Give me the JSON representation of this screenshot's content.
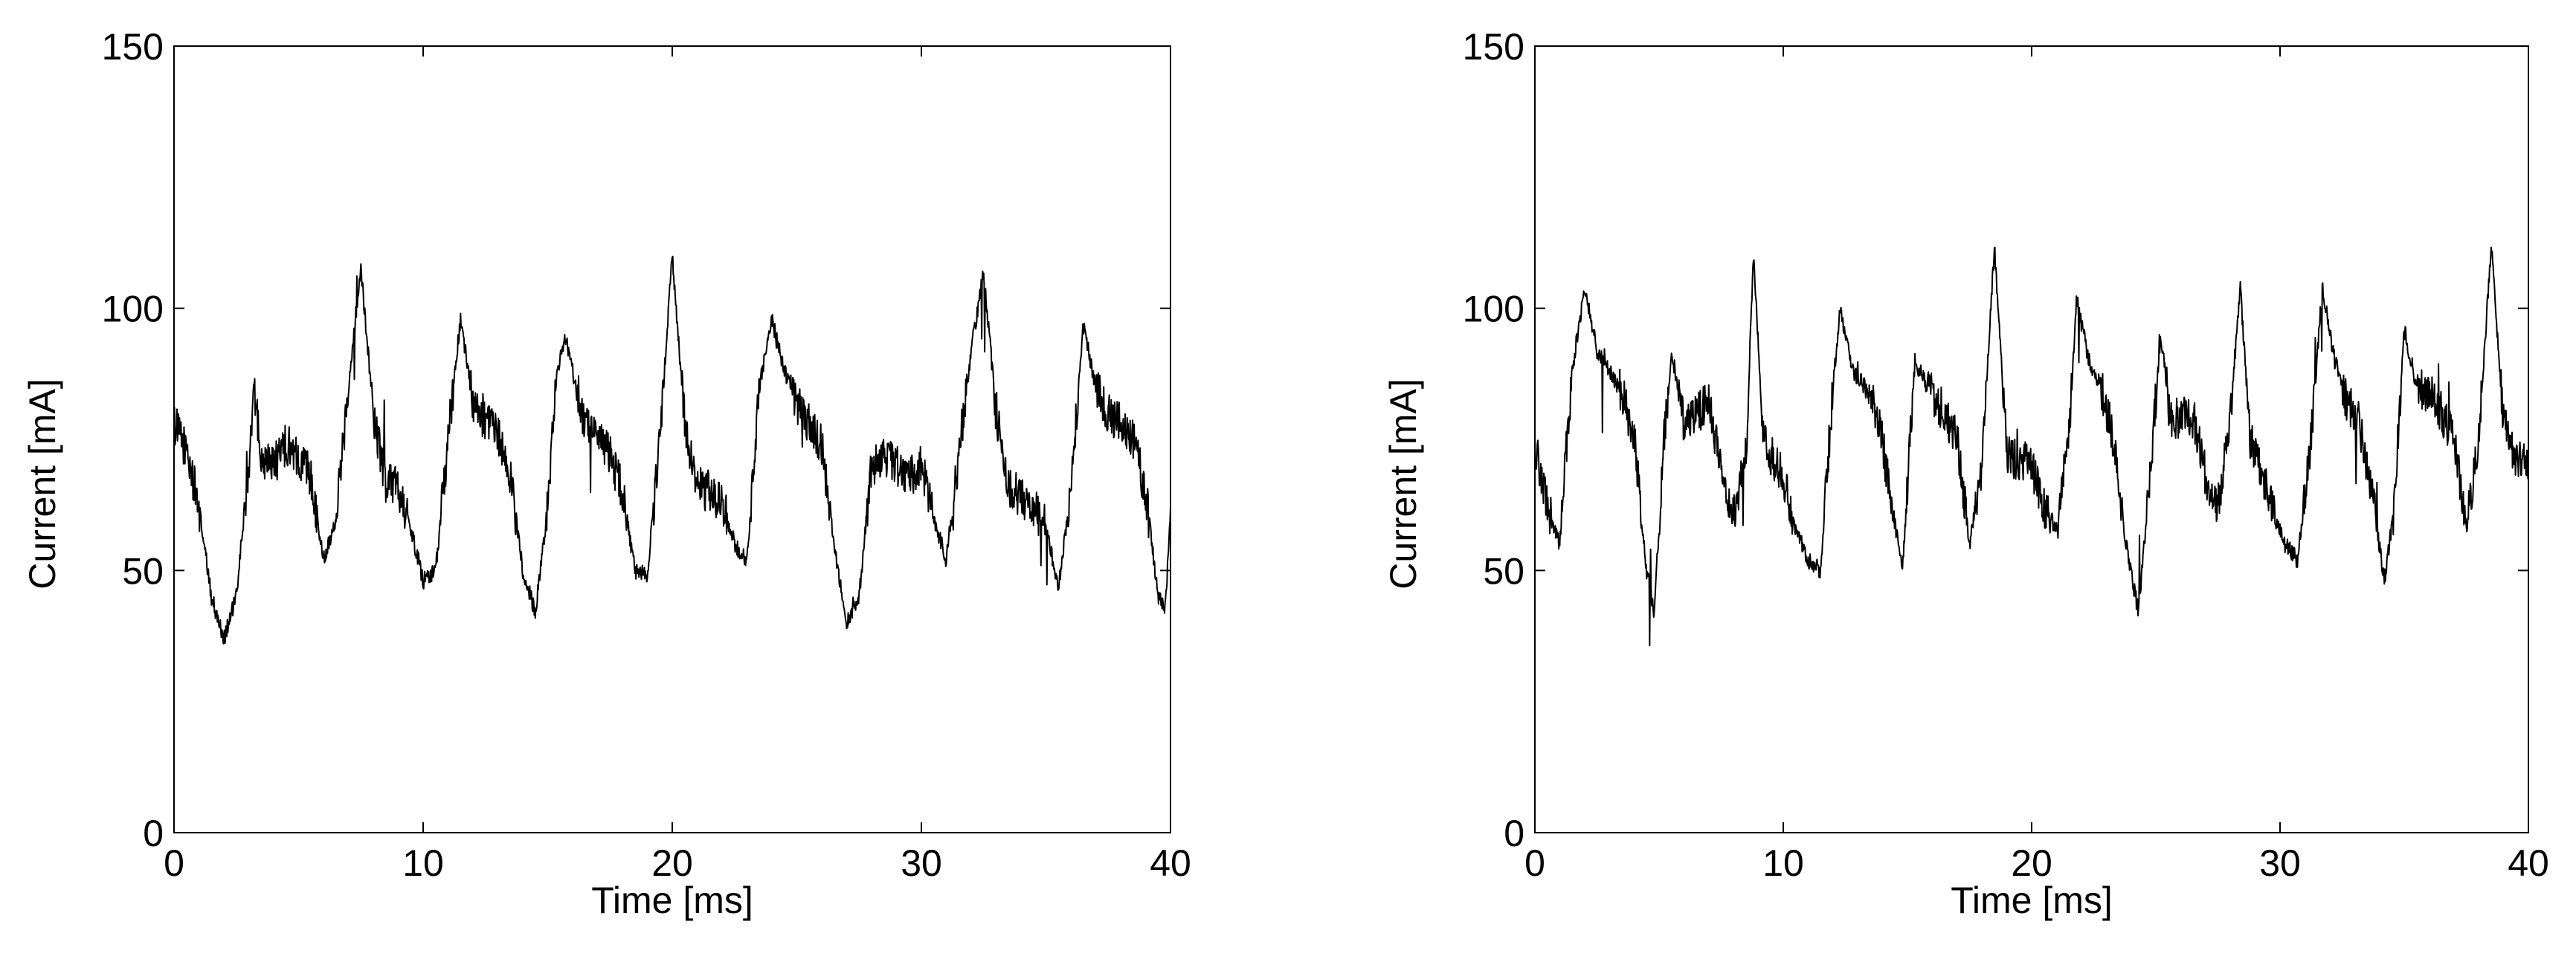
{
  "chart_data": [
    {
      "type": "line",
      "xlabel": "Time [ms]",
      "ylabel": "Current [mA]",
      "xlim": [
        0,
        40
      ],
      "ylim": [
        0,
        150
      ],
      "xticks": [
        0,
        10,
        20,
        30,
        40
      ],
      "yticks": [
        0,
        50,
        100,
        150
      ],
      "grid": false,
      "color": "#000000",
      "series": [
        {
          "keypoints": [
            [
              0.0,
              78
            ],
            [
              0.5,
              73
            ],
            [
              1.0,
              62
            ],
            [
              1.5,
              45
            ],
            [
              2.0,
              37
            ],
            [
              2.5,
              45
            ],
            [
              3.0,
              70
            ],
            [
              3.2,
              85
            ],
            [
              3.5,
              72
            ],
            [
              4.0,
              70
            ],
            [
              4.5,
              74
            ],
            [
              5.0,
              72
            ],
            [
              5.5,
              68
            ],
            [
              6.0,
              52
            ],
            [
              6.5,
              60
            ],
            [
              7.0,
              85
            ],
            [
              7.5,
              108
            ],
            [
              8.0,
              80
            ],
            [
              8.5,
              67
            ],
            [
              9.0,
              66
            ],
            [
              9.5,
              58
            ],
            [
              10.0,
              48
            ],
            [
              10.5,
              50
            ],
            [
              11.0,
              75
            ],
            [
              11.5,
              98
            ],
            [
              12.0,
              82
            ],
            [
              12.5,
              78
            ],
            [
              13.0,
              76
            ],
            [
              13.5,
              68
            ],
            [
              14.0,
              50
            ],
            [
              14.5,
              42
            ],
            [
              15.0,
              62
            ],
            [
              15.3,
              85
            ],
            [
              15.7,
              95
            ],
            [
              16.0,
              88
            ],
            [
              16.5,
              78
            ],
            [
              17.0,
              76
            ],
            [
              17.5,
              72
            ],
            [
              18.0,
              65
            ],
            [
              18.5,
              50
            ],
            [
              19.0,
              49
            ],
            [
              19.5,
              75
            ],
            [
              20.0,
              110
            ],
            [
              20.5,
              78
            ],
            [
              21.0,
              66
            ],
            [
              21.5,
              65
            ],
            [
              22.0,
              63
            ],
            [
              22.5,
              55
            ],
            [
              23.0,
              52
            ],
            [
              23.5,
              85
            ],
            [
              24.0,
              98
            ],
            [
              24.5,
              88
            ],
            [
              25.0,
              82
            ],
            [
              25.5,
              78
            ],
            [
              26.0,
              74
            ],
            [
              26.5,
              55
            ],
            [
              27.0,
              40
            ],
            [
              27.5,
              45
            ],
            [
              28.0,
              70
            ],
            [
              28.5,
              72
            ],
            [
              29.0,
              70
            ],
            [
              29.5,
              68
            ],
            [
              30.0,
              70
            ],
            [
              30.5,
              60
            ],
            [
              31.0,
              52
            ],
            [
              31.5,
              72
            ],
            [
              32.0,
              92
            ],
            [
              32.5,
              107
            ],
            [
              33.0,
              80
            ],
            [
              33.5,
              66
            ],
            [
              34.0,
              64
            ],
            [
              34.5,
              62
            ],
            [
              35.0,
              58
            ],
            [
              35.5,
              47
            ],
            [
              36.0,
              65
            ],
            [
              36.5,
              97
            ],
            [
              37.0,
              85
            ],
            [
              37.5,
              80
            ],
            [
              38.0,
              78
            ],
            [
              38.5,
              75
            ],
            [
              39.0,
              65
            ],
            [
              39.5,
              45
            ],
            [
              39.8,
              43
            ],
            [
              40.0,
              62
            ]
          ]
        }
      ]
    },
    {
      "type": "line",
      "xlabel": "Time [ms]",
      "ylabel": "Current [mA]",
      "xlim": [
        0,
        40
      ],
      "ylim": [
        0,
        150
      ],
      "xticks": [
        0,
        10,
        20,
        30,
        40
      ],
      "yticks": [
        0,
        50,
        100,
        150
      ],
      "grid": false,
      "color": "#000000",
      "series": [
        {
          "keypoints": [
            [
              0.0,
              74
            ],
            [
              0.5,
              62
            ],
            [
              1.0,
              55
            ],
            [
              1.5,
              88
            ],
            [
              2.0,
              104
            ],
            [
              2.5,
              92
            ],
            [
              3.0,
              88
            ],
            [
              3.5,
              84
            ],
            [
              4.0,
              75
            ],
            [
              4.5,
              50
            ],
            [
              4.8,
              42
            ],
            [
              5.2,
              75
            ],
            [
              5.5,
              92
            ],
            [
              6.0,
              78
            ],
            [
              6.5,
              80
            ],
            [
              7.0,
              82
            ],
            [
              7.5,
              70
            ],
            [
              8.0,
              60
            ],
            [
              8.5,
              72
            ],
            [
              8.8,
              110
            ],
            [
              9.2,
              75
            ],
            [
              9.5,
              72
            ],
            [
              10.0,
              68
            ],
            [
              10.5,
              58
            ],
            [
              11.0,
              52
            ],
            [
              11.5,
              50
            ],
            [
              12.0,
              85
            ],
            [
              12.3,
              100
            ],
            [
              12.8,
              88
            ],
            [
              13.3,
              85
            ],
            [
              13.8,
              80
            ],
            [
              14.3,
              65
            ],
            [
              14.8,
              50
            ],
            [
              15.3,
              90
            ],
            [
              15.8,
              85
            ],
            [
              16.5,
              80
            ],
            [
              17.0,
              75
            ],
            [
              17.5,
              55
            ],
            [
              18.0,
              70
            ],
            [
              18.5,
              112
            ],
            [
              19.0,
              72
            ],
            [
              19.5,
              71
            ],
            [
              20.0,
              70
            ],
            [
              20.5,
              62
            ],
            [
              21.0,
              58
            ],
            [
              21.5,
              75
            ],
            [
              21.8,
              102
            ],
            [
              22.3,
              90
            ],
            [
              22.8,
              85
            ],
            [
              23.3,
              75
            ],
            [
              23.8,
              55
            ],
            [
              24.3,
              42
            ],
            [
              24.8,
              70
            ],
            [
              25.2,
              95
            ],
            [
              25.6,
              78
            ],
            [
              26.1,
              80
            ],
            [
              26.6,
              78
            ],
            [
              27.0,
              68
            ],
            [
              27.5,
              62
            ],
            [
              28.0,
              80
            ],
            [
              28.4,
              104
            ],
            [
              28.8,
              75
            ],
            [
              29.3,
              68
            ],
            [
              29.8,
              60
            ],
            [
              30.2,
              55
            ],
            [
              30.7,
              52
            ],
            [
              31.2,
              72
            ],
            [
              31.7,
              104
            ],
            [
              32.2,
              90
            ],
            [
              32.7,
              82
            ],
            [
              33.2,
              78
            ],
            [
              33.7,
              65
            ],
            [
              34.2,
              48
            ],
            [
              34.6,
              62
            ],
            [
              35.0,
              96
            ],
            [
              35.5,
              85
            ],
            [
              36.0,
              84
            ],
            [
              36.5,
              80
            ],
            [
              37.0,
              75
            ],
            [
              37.5,
              58
            ],
            [
              38.0,
              75
            ],
            [
              38.5,
              112
            ],
            [
              39.0,
              78
            ],
            [
              39.5,
              71
            ],
            [
              40.0,
              70
            ]
          ]
        }
      ]
    }
  ]
}
